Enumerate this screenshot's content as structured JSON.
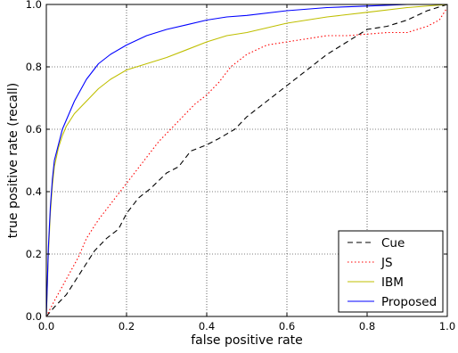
{
  "chart_data": {
    "type": "line",
    "xlabel": "false positive rate",
    "ylabel": "true positive rate (recall)",
    "xlim": [
      0.0,
      1.0
    ],
    "ylim": [
      0.0,
      1.0
    ],
    "xticks": [
      "0.0",
      "0.2",
      "0.4",
      "0.6",
      "0.8",
      "1.0"
    ],
    "yticks": [
      "0.0",
      "0.2",
      "0.4",
      "0.6",
      "0.8",
      "1.0"
    ],
    "grid": true,
    "legend_position": "lower-right",
    "series": [
      {
        "name": "Cue",
        "color": "#000000",
        "style": "dashed",
        "x": [
          0.0,
          0.02,
          0.05,
          0.08,
          0.1,
          0.12,
          0.15,
          0.18,
          0.2,
          0.23,
          0.26,
          0.3,
          0.33,
          0.36,
          0.4,
          0.43,
          0.47,
          0.5,
          0.55,
          0.6,
          0.65,
          0.7,
          0.75,
          0.8,
          0.85,
          0.9,
          0.95,
          1.0
        ],
        "y": [
          0.0,
          0.03,
          0.07,
          0.13,
          0.17,
          0.21,
          0.25,
          0.28,
          0.33,
          0.38,
          0.41,
          0.46,
          0.48,
          0.53,
          0.55,
          0.57,
          0.6,
          0.64,
          0.69,
          0.74,
          0.79,
          0.84,
          0.88,
          0.92,
          0.93,
          0.95,
          0.98,
          1.0
        ]
      },
      {
        "name": "JS",
        "color": "#ff0000",
        "style": "dotted",
        "x": [
          0.0,
          0.02,
          0.05,
          0.08,
          0.1,
          0.13,
          0.16,
          0.19,
          0.22,
          0.25,
          0.28,
          0.31,
          0.34,
          0.37,
          0.4,
          0.43,
          0.46,
          0.5,
          0.55,
          0.6,
          0.65,
          0.7,
          0.75,
          0.8,
          0.85,
          0.9,
          0.95,
          0.98,
          1.0
        ],
        "y": [
          0.0,
          0.05,
          0.12,
          0.19,
          0.25,
          0.31,
          0.36,
          0.41,
          0.46,
          0.51,
          0.56,
          0.6,
          0.64,
          0.68,
          0.71,
          0.75,
          0.8,
          0.84,
          0.87,
          0.88,
          0.89,
          0.9,
          0.9,
          0.905,
          0.91,
          0.91,
          0.93,
          0.95,
          0.99
        ]
      },
      {
        "name": "IBM",
        "color": "#bfbf00",
        "style": "solid",
        "x": [
          0.0,
          0.005,
          0.01,
          0.015,
          0.02,
          0.03,
          0.04,
          0.05,
          0.07,
          0.1,
          0.13,
          0.16,
          0.2,
          0.25,
          0.3,
          0.35,
          0.4,
          0.45,
          0.5,
          0.6,
          0.7,
          0.8,
          0.9,
          1.0
        ],
        "y": [
          0.0,
          0.2,
          0.33,
          0.42,
          0.48,
          0.54,
          0.58,
          0.61,
          0.65,
          0.69,
          0.73,
          0.76,
          0.79,
          0.81,
          0.83,
          0.855,
          0.88,
          0.9,
          0.91,
          0.94,
          0.96,
          0.975,
          0.99,
          1.0
        ]
      },
      {
        "name": "Proposed",
        "color": "#0000ff",
        "style": "solid",
        "x": [
          0.0,
          0.005,
          0.01,
          0.015,
          0.02,
          0.03,
          0.04,
          0.05,
          0.07,
          0.1,
          0.13,
          0.16,
          0.2,
          0.25,
          0.3,
          0.35,
          0.4,
          0.45,
          0.5,
          0.6,
          0.7,
          0.8,
          0.9,
          1.0
        ],
        "y": [
          0.0,
          0.22,
          0.35,
          0.44,
          0.5,
          0.55,
          0.6,
          0.63,
          0.69,
          0.76,
          0.81,
          0.84,
          0.87,
          0.9,
          0.92,
          0.935,
          0.95,
          0.96,
          0.965,
          0.98,
          0.99,
          0.995,
          1.0,
          1.0
        ]
      }
    ]
  }
}
